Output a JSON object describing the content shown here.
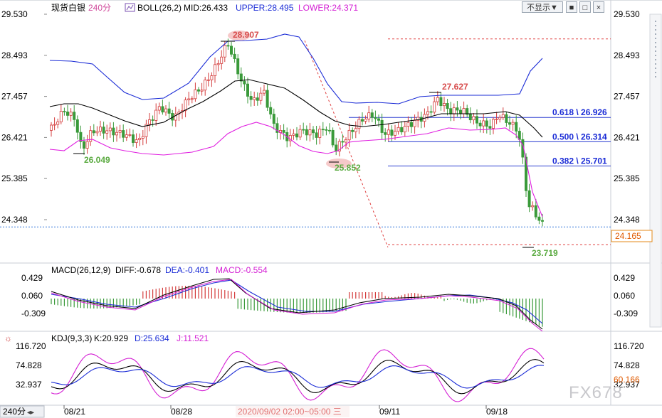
{
  "header": {
    "symbol": "现货白银",
    "period": "240分",
    "indicator": "BOLL(26,2)",
    "mid": "MID:26.433",
    "upper": "UPPER:28.495",
    "lower": "LOWER:24.371",
    "dropdown": "不显示▼",
    "btn_box": "■",
    "btn_max": "□",
    "btn_close": "×",
    "colors": {
      "mid": "#000000",
      "upper": "#1a2bd6",
      "lower": "#e01ee0"
    }
  },
  "price_panel": {
    "y_ticks": [
      "29.530",
      "28.493",
      "27.457",
      "26.421",
      "25.385",
      "24.348"
    ],
    "current_price": "24.165",
    "labels": {
      "high": "28.907",
      "peak2": "27.627",
      "low1": "26.049",
      "low2": "25.852",
      "low3": "23.719"
    },
    "fib": [
      {
        "label": "0.618 \\ 26.926",
        "value": 26.926
      },
      {
        "label": "0.500 \\ 26.314",
        "value": 26.314
      },
      {
        "label": "0.382 \\ 25.701",
        "value": 25.701
      }
    ],
    "resistance": 28.907,
    "support": 23.719
  },
  "macd_panel": {
    "title": "MACD(26,12,9)",
    "diff": "DIFF:-0.678",
    "dea": "DEA:-0.401",
    "macd": "MACD:-0.554",
    "y_ticks": [
      "0.429",
      "0.060",
      "-0.309"
    ]
  },
  "kdj_panel": {
    "title": "KDJ(9,3,3)",
    "k": "K:20.929",
    "d": "D:25.634",
    "j": "J:11.521",
    "y_ticks": [
      "116.720",
      "74.828",
      "32.937"
    ],
    "side_value": "60.166"
  },
  "x_axis": {
    "period_button": "240分",
    "dates": [
      "08/21",
      "08/28",
      "09/11",
      "09/18"
    ],
    "cursor": "2020/09/02 02:00~05:00 三"
  },
  "watermark": "FX678",
  "chart_data": {
    "type": "candlestick",
    "title": "现货白银 240分",
    "ylim": [
      23.6,
      29.7
    ],
    "x": [
      "08/21",
      "08/28",
      "09/11",
      "09/18"
    ],
    "series": [
      {
        "name": "BOLL MID",
        "value": 26.433
      },
      {
        "name": "BOLL UPPER",
        "value": 28.495
      },
      {
        "name": "BOLL LOWER",
        "value": 24.371
      }
    ],
    "annotations": [
      {
        "label": "28.907",
        "type": "high"
      },
      {
        "label": "27.627",
        "type": "high"
      },
      {
        "label": "26.049",
        "type": "low"
      },
      {
        "label": "25.852",
        "type": "low"
      },
      {
        "label": "23.719",
        "type": "low"
      },
      {
        "label": "0.618 \\ 26.926",
        "type": "fibonacci"
      },
      {
        "label": "0.500 \\ 26.314",
        "type": "fibonacci"
      },
      {
        "label": "0.382 \\ 25.701",
        "type": "fibonacci"
      }
    ],
    "current": 24.165
  }
}
